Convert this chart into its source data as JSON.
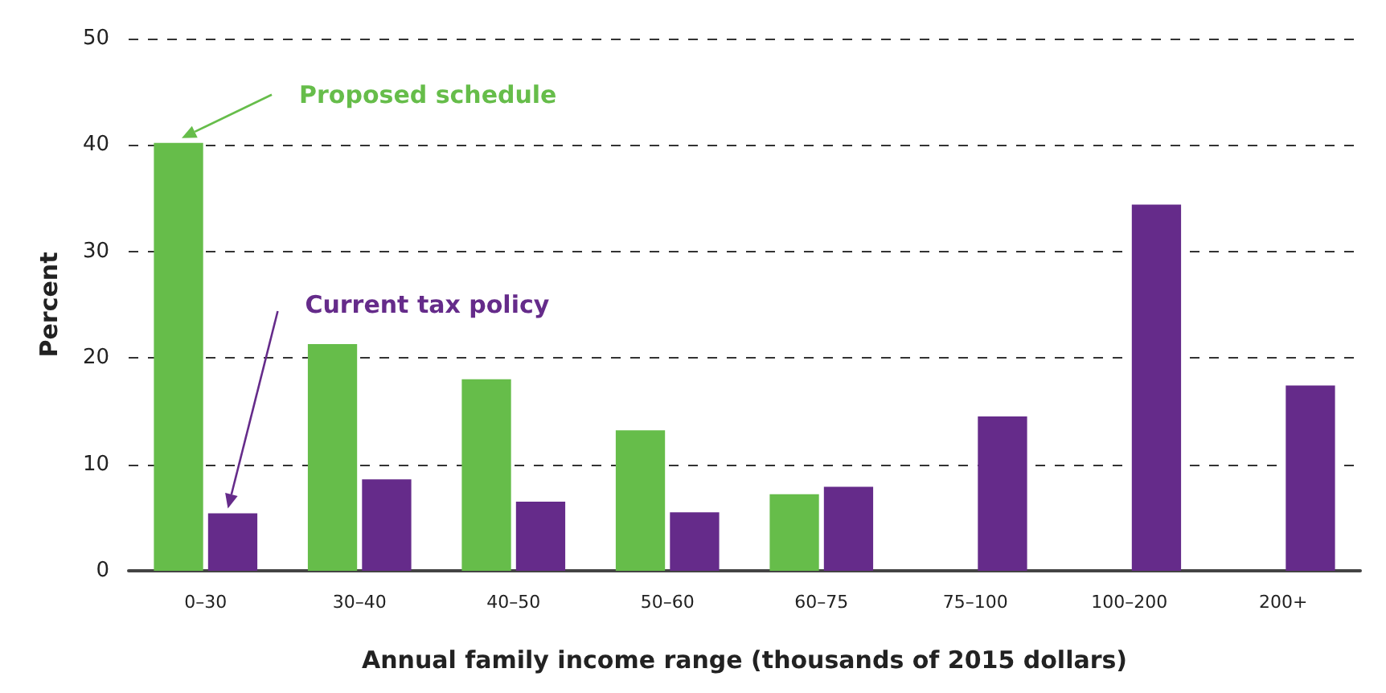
{
  "chart_data": {
    "type": "bar",
    "xlabel": "Annual family income range (thousands of 2015 dollars)",
    "ylabel": "Percent",
    "categories": [
      "0–30",
      "30–40",
      "40–50",
      "50–60",
      "60–75",
      "75–100",
      "100–200",
      "200+"
    ],
    "series": [
      {
        "name": "Proposed schedule",
        "color": "#66bd4a",
        "values": [
          40.2,
          21.3,
          18.0,
          13.2,
          7.2,
          null,
          null,
          null
        ]
      },
      {
        "name": "Current tax policy",
        "color": "#652b8a",
        "values": [
          5.4,
          8.6,
          6.5,
          5.5,
          7.9,
          14.5,
          34.4,
          17.4
        ]
      }
    ],
    "ylim": [
      0,
      50
    ],
    "yticks": [
      0,
      10,
      20,
      30,
      40,
      50
    ],
    "grid": "y",
    "legend": false
  }
}
